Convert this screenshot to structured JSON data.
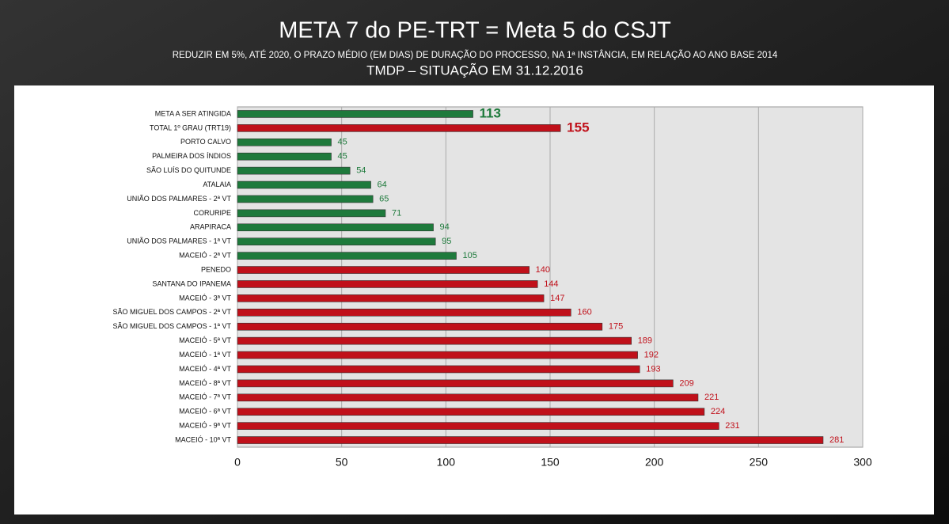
{
  "chart_data": {
    "type": "bar",
    "orientation": "horizontal",
    "title": "META 7 do PE-TRT = Meta 5 do CSJT",
    "subtitle": "REDUZIR EM 5%, ATÉ 2020, O PRAZO MÉDIO (EM DIAS) DE DURAÇÃO DO PROCESSO, NA 1ª INSTÂNCIA, EM RELAÇÃO AO ANO BASE 2014",
    "subtitle2": "TMDP – SITUAÇÃO EM 31.12.2016",
    "categories": [
      "META A SER ATINGIDA",
      "TOTAL 1º GRAU (TRT19)",
      "PORTO CALVO",
      "PALMEIRA DOS ÍNDIOS",
      "SÃO LUÍS DO QUITUNDE",
      "ATALAIA",
      "UNIÃO DOS PALMARES - 2ª VT",
      "CORURIPE",
      "ARAPIRACA",
      "UNIÃO DOS PALMARES - 1ª VT",
      "MACEIÓ - 2ª VT",
      "PENEDO",
      "SANTANA DO IPANEMA",
      "MACEIÓ - 3ª VT",
      "SÃO MIGUEL DOS CAMPOS - 2ª VT",
      "SÃO MIGUEL DOS CAMPOS - 1ª VT",
      "MACEIÓ - 5ª VT",
      "MACEIÓ - 1ª VT",
      "MACEIÓ - 4ª VT",
      "MACEIÓ - 8ª VT",
      "MACEIÓ - 7ª VT",
      "MACEIÓ - 6ª VT",
      "MACEIÓ - 9ª VT",
      "MACEIÓ - 10ª VT"
    ],
    "values": [
      113,
      155,
      45,
      45,
      54,
      64,
      65,
      71,
      94,
      95,
      105,
      140,
      144,
      147,
      160,
      175,
      189,
      192,
      193,
      209,
      221,
      224,
      231,
      281
    ],
    "colors": [
      "#1e7a3c",
      "#c0101a",
      "#1e7a3c",
      "#1e7a3c",
      "#1e7a3c",
      "#1e7a3c",
      "#1e7a3c",
      "#1e7a3c",
      "#1e7a3c",
      "#1e7a3c",
      "#1e7a3c",
      "#c0101a",
      "#c0101a",
      "#c0101a",
      "#c0101a",
      "#c0101a",
      "#c0101a",
      "#c0101a",
      "#c0101a",
      "#c0101a",
      "#c0101a",
      "#c0101a",
      "#c0101a",
      "#c0101a"
    ],
    "xlim": [
      0,
      300
    ],
    "xticks": [
      0,
      50,
      100,
      150,
      200,
      250,
      300
    ],
    "grid": true
  }
}
